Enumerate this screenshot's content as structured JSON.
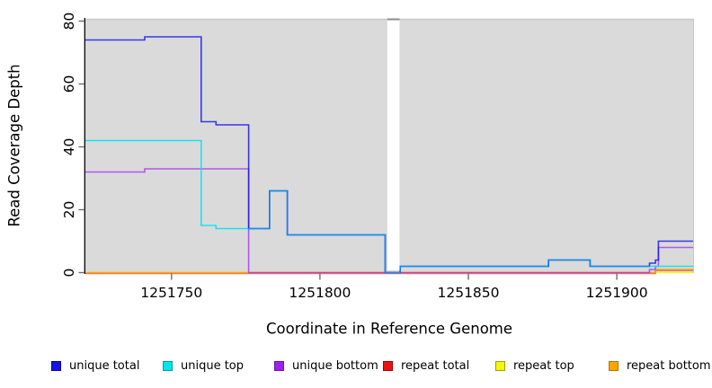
{
  "chart_data": {
    "type": "line",
    "subtype": "step-coverage-plot",
    "title": "",
    "xlabel": "Coordinate in Reference Genome",
    "ylabel": "Read Coverage Depth",
    "xlim": [
      1251721,
      1251926
    ],
    "ylim": [
      0,
      80
    ],
    "x_ticks": [
      1251750,
      1251800,
      1251850,
      1251900
    ],
    "y_ticks": [
      0,
      20,
      40,
      60,
      80
    ],
    "grid": "off",
    "panel_bg": "#DADADA",
    "gap_region": {
      "x_start": 1251823,
      "x_end": 1251826.5,
      "fill": "#FFFFFF"
    },
    "legend_position": "bottom",
    "series": [
      {
        "name": "unique-total",
        "label": "unique total",
        "color": "#1414E6",
        "swatch_border": "#0000A0",
        "points": [
          [
            1251721,
            74
          ],
          [
            1251741,
            75
          ],
          [
            1251760,
            48
          ],
          [
            1251765,
            47
          ],
          [
            1251776,
            14
          ],
          [
            1251783,
            26
          ],
          [
            1251789,
            12
          ],
          [
            1251822,
            0
          ],
          [
            1251827,
            2
          ],
          [
            1251877,
            4
          ],
          [
            1251891,
            2
          ],
          [
            1251911,
            3
          ],
          [
            1251913,
            4
          ],
          [
            1251914,
            10
          ]
        ]
      },
      {
        "name": "unique-top",
        "label": "unique top",
        "color": "#00E5EE",
        "swatch_border": "#009AA8",
        "points": [
          [
            1251721,
            42
          ],
          [
            1251760,
            15
          ],
          [
            1251765,
            14
          ],
          [
            1251776,
            14
          ],
          [
            1251783,
            26
          ],
          [
            1251789,
            12
          ],
          [
            1251822,
            0
          ],
          [
            1251827,
            2
          ],
          [
            1251877,
            4
          ],
          [
            1251891,
            2
          ]
        ]
      },
      {
        "name": "unique-bottom",
        "label": "unique bottom",
        "color": "#A020F0",
        "swatch_border": "#6A14A8",
        "points": [
          [
            1251721,
            32
          ],
          [
            1251741,
            33
          ],
          [
            1251776,
            0
          ],
          [
            1251911,
            1
          ],
          [
            1251913,
            2
          ],
          [
            1251914,
            8
          ]
        ]
      },
      {
        "name": "repeat-total",
        "label": "repeat total",
        "color": "#EE1111",
        "swatch_border": "#A00000",
        "points": [
          [
            1251721,
            0
          ],
          [
            1251913,
            1
          ]
        ]
      },
      {
        "name": "repeat-top",
        "label": "repeat top",
        "color": "#F5F511",
        "swatch_border": "#A0A000",
        "points": [
          [
            1251721,
            0
          ]
        ]
      },
      {
        "name": "repeat-bottom",
        "label": "repeat bottom",
        "color": "#FFA500",
        "swatch_border": "#B07300",
        "points": [
          [
            1251721,
            0
          ],
          [
            1251913,
            1
          ]
        ]
      }
    ]
  }
}
